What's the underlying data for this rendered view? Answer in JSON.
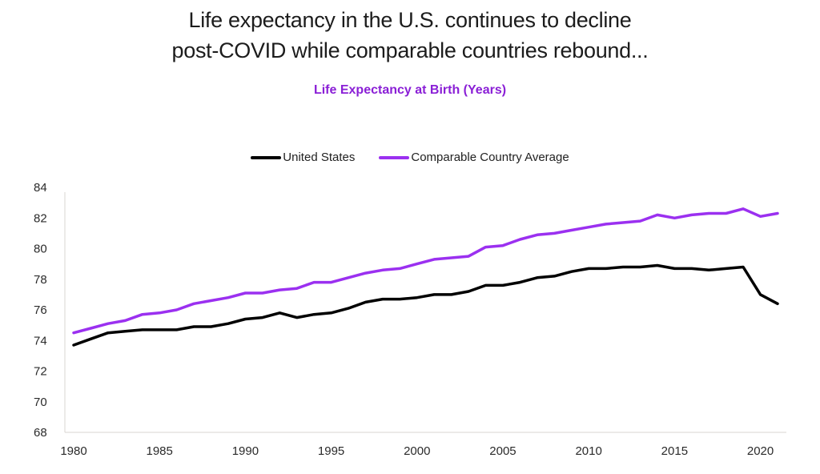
{
  "header": {
    "title_line1": "Life expectancy in the U.S. continues to decline",
    "title_line2": "post-COVID while comparable countries rebound...",
    "subtitle": "Life Expectancy at Birth (Years)"
  },
  "colors": {
    "us": "#000000",
    "comparable": "#9b30f0",
    "subtitle": "#8a1fd6",
    "axis": "#d9d4d0"
  },
  "chart_data": {
    "type": "line",
    "title": "Life expectancy in the U.S. continues to decline post-COVID while comparable countries rebound...",
    "subtitle": "Life Expectancy at Birth (Years)",
    "xlabel": "",
    "ylabel": "",
    "legend_position": "top-center",
    "grid": false,
    "xlim": [
      1980,
      2021
    ],
    "ylim": [
      68,
      84
    ],
    "x_ticks": [
      "1980",
      "1985",
      "1990",
      "1995",
      "2000",
      "2005",
      "2010",
      "2015",
      "2020"
    ],
    "y_ticks": [
      "68",
      "70",
      "72",
      "74",
      "76",
      "78",
      "80",
      "82",
      "84"
    ],
    "x": [
      1980,
      1981,
      1982,
      1983,
      1984,
      1985,
      1986,
      1987,
      1988,
      1989,
      1990,
      1991,
      1992,
      1993,
      1994,
      1995,
      1996,
      1997,
      1998,
      1999,
      2000,
      2001,
      2002,
      2003,
      2004,
      2005,
      2006,
      2007,
      2008,
      2009,
      2010,
      2011,
      2012,
      2013,
      2014,
      2015,
      2016,
      2017,
      2018,
      2019,
      2020,
      2021
    ],
    "series": [
      {
        "name": "United States",
        "color": "#000000",
        "values": [
          73.7,
          74.1,
          74.5,
          74.6,
          74.7,
          74.7,
          74.7,
          74.9,
          74.9,
          75.1,
          75.4,
          75.5,
          75.8,
          75.5,
          75.7,
          75.8,
          76.1,
          76.5,
          76.7,
          76.7,
          76.8,
          77.0,
          77.0,
          77.2,
          77.6,
          77.6,
          77.8,
          78.1,
          78.2,
          78.5,
          78.7,
          78.7,
          78.8,
          78.8,
          78.9,
          78.7,
          78.7,
          78.6,
          78.7,
          78.8,
          77.0,
          76.4
        ]
      },
      {
        "name": "Comparable Country Average",
        "color": "#9b30f0",
        "values": [
          74.5,
          74.8,
          75.1,
          75.3,
          75.7,
          75.8,
          76.0,
          76.4,
          76.6,
          76.8,
          77.1,
          77.1,
          77.3,
          77.4,
          77.8,
          77.8,
          78.1,
          78.4,
          78.6,
          78.7,
          79.0,
          79.3,
          79.4,
          79.5,
          80.1,
          80.2,
          80.6,
          80.9,
          81.0,
          81.2,
          81.4,
          81.6,
          81.7,
          81.8,
          82.2,
          82.0,
          82.2,
          82.3,
          82.3,
          82.6,
          82.1,
          82.3
        ]
      }
    ]
  }
}
